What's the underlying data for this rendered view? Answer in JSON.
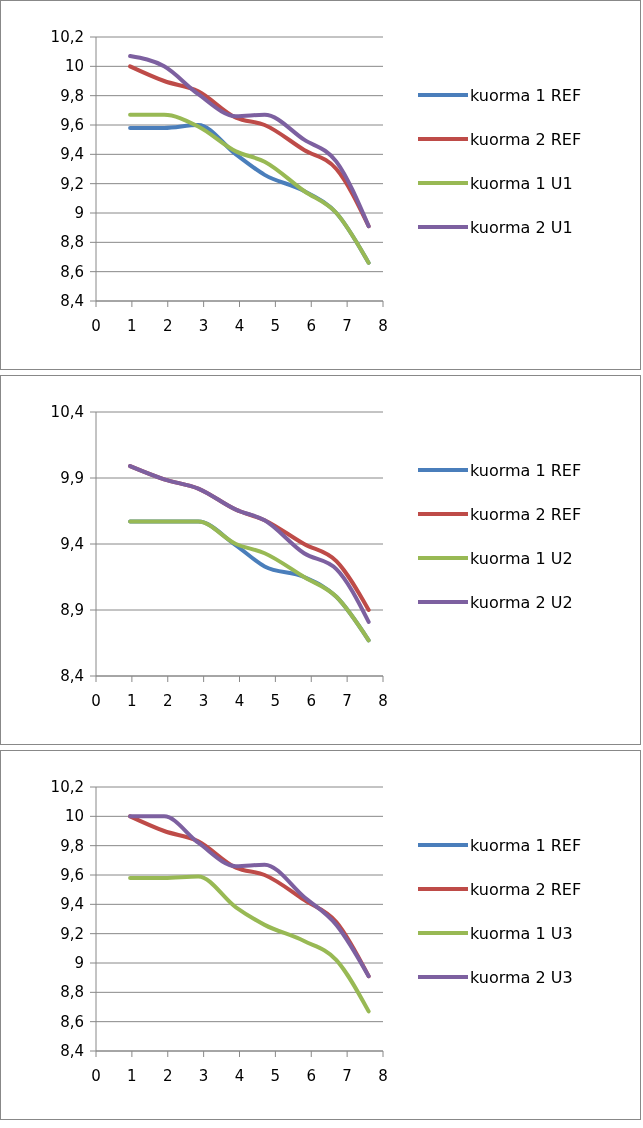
{
  "chart_data": [
    {
      "type": "line",
      "x": [
        0.95,
        1.9,
        2.85,
        3.9,
        4.7,
        5.8,
        6.7,
        7.6
      ],
      "xlim": [
        0,
        8
      ],
      "xticks": [
        0,
        1,
        2,
        3,
        4,
        5,
        6,
        7,
        8
      ],
      "ylim": [
        8.4,
        10.2
      ],
      "yticks": [
        {
          "value": 8.4,
          "label": "8,4"
        },
        {
          "value": 8.6,
          "label": "8,6"
        },
        {
          "value": 8.8,
          "label": "8,8"
        },
        {
          "value": 9,
          "label": "9"
        },
        {
          "value": 9.2,
          "label": "9,2"
        },
        {
          "value": 9.4,
          "label": "9,4"
        },
        {
          "value": 9.6,
          "label": "9,6"
        },
        {
          "value": 9.8,
          "label": "9,8"
        },
        {
          "value": 10,
          "label": "10"
        },
        {
          "value": 10.2,
          "label": "10,2"
        }
      ],
      "grid": "y",
      "legend": "right",
      "marker": "none",
      "line_style": "solid",
      "series": [
        {
          "name": "kuorma 1 REF",
          "color": "#4a7ebb",
          "values": [
            9.58,
            9.58,
            9.6,
            9.4,
            9.26,
            9.15,
            9.0,
            8.66
          ]
        },
        {
          "name": "kuorma 2 REF",
          "color": "#be4b48",
          "values": [
            10.0,
            9.9,
            9.83,
            9.65,
            9.6,
            9.43,
            9.3,
            8.91
          ]
        },
        {
          "name": "kuorma 1 U1",
          "color": "#98b954",
          "values": [
            9.67,
            9.67,
            9.59,
            9.42,
            9.35,
            9.15,
            9.0,
            8.66
          ]
        },
        {
          "name": "kuorma 2 U1",
          "color": "#7d60a0",
          "values": [
            10.07,
            10.0,
            9.81,
            9.66,
            9.67,
            9.5,
            9.35,
            8.91
          ]
        }
      ]
    },
    {
      "type": "line",
      "x": [
        0.95,
        1.9,
        2.85,
        3.9,
        4.7,
        5.8,
        6.7,
        7.6
      ],
      "xlim": [
        0,
        8
      ],
      "xticks": [
        0,
        1,
        2,
        3,
        4,
        5,
        6,
        7,
        8
      ],
      "ylim": [
        8.4,
        10.4
      ],
      "yticks": [
        {
          "value": 8.4,
          "label": "8,4"
        },
        {
          "value": 8.9,
          "label": "8,9"
        },
        {
          "value": 9.4,
          "label": "9,4"
        },
        {
          "value": 9.9,
          "label": "9,9"
        },
        {
          "value": 10.4,
          "label": "10,4"
        }
      ],
      "grid": "y",
      "legend": "right",
      "marker": "none",
      "line_style": "solid",
      "series": [
        {
          "name": "kuorma 1 REF",
          "color": "#4a7ebb",
          "values": [
            9.57,
            9.57,
            9.57,
            9.39,
            9.23,
            9.15,
            9.0,
            8.67
          ]
        },
        {
          "name": "kuorma 2 REF",
          "color": "#be4b48",
          "values": [
            9.99,
            9.89,
            9.82,
            9.66,
            9.58,
            9.4,
            9.27,
            8.9
          ]
        },
        {
          "name": "kuorma 1 U2",
          "color": "#98b954",
          "values": [
            9.57,
            9.57,
            9.57,
            9.4,
            9.33,
            9.15,
            9.0,
            8.67
          ]
        },
        {
          "name": "kuorma 2 U2",
          "color": "#7d60a0",
          "values": [
            9.99,
            9.89,
            9.82,
            9.66,
            9.58,
            9.33,
            9.21,
            8.81
          ]
        }
      ]
    },
    {
      "type": "line",
      "x": [
        0.95,
        1.9,
        2.85,
        3.9,
        4.7,
        5.8,
        6.7,
        7.6
      ],
      "xlim": [
        0,
        8
      ],
      "xticks": [
        0,
        1,
        2,
        3,
        4,
        5,
        6,
        7,
        8
      ],
      "ylim": [
        8.4,
        10.2
      ],
      "yticks": [
        {
          "value": 8.4,
          "label": "8,4"
        },
        {
          "value": 8.6,
          "label": "8,6"
        },
        {
          "value": 8.8,
          "label": "8,8"
        },
        {
          "value": 9,
          "label": "9"
        },
        {
          "value": 9.2,
          "label": "9,2"
        },
        {
          "value": 9.4,
          "label": "9,4"
        },
        {
          "value": 9.6,
          "label": "9,6"
        },
        {
          "value": 9.8,
          "label": "9,8"
        },
        {
          "value": 10,
          "label": "10"
        },
        {
          "value": 10.2,
          "label": "10,2"
        }
      ],
      "grid": "y",
      "legend": "right",
      "marker": "none",
      "line_style": "solid",
      "series": [
        {
          "name": "kuorma 1 REF",
          "color": "#4a7ebb",
          "values": [
            null,
            null,
            null,
            null,
            null,
            null,
            null,
            null
          ]
        },
        {
          "name": "kuorma 2 REF",
          "color": "#be4b48",
          "values": [
            10.0,
            9.9,
            9.83,
            9.65,
            9.6,
            9.43,
            9.28,
            8.91
          ]
        },
        {
          "name": "kuorma 1 U3",
          "color": "#98b954",
          "values": [
            9.58,
            9.58,
            9.59,
            9.38,
            9.26,
            9.15,
            9.02,
            8.67
          ]
        },
        {
          "name": "kuorma 2 U3",
          "color": "#7d60a0",
          "values": [
            10.0,
            10.0,
            9.82,
            9.66,
            9.67,
            9.45,
            9.26,
            8.91
          ]
        }
      ]
    }
  ]
}
